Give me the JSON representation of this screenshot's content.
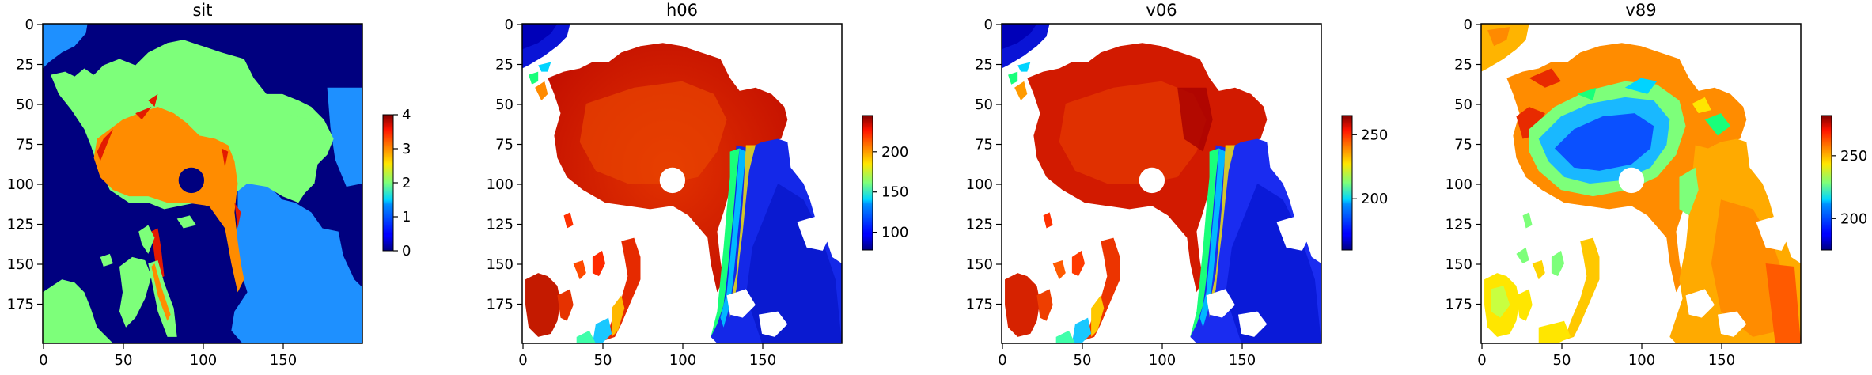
{
  "chart_data": [
    {
      "type": "heatmap",
      "title": "sit",
      "xticks": [
        "0",
        "50",
        "100",
        "150"
      ],
      "yticks": [
        "0",
        "25",
        "50",
        "75",
        "100",
        "125",
        "150",
        "175"
      ],
      "colorbar": {
        "ticks": [
          "0",
          "1",
          "2",
          "3",
          "4"
        ],
        "min": 0,
        "max": 4
      },
      "colormap": "jet"
    },
    {
      "type": "heatmap",
      "title": "h06",
      "xticks": [
        "0",
        "50",
        "100",
        "150"
      ],
      "yticks": [
        "0",
        "25",
        "50",
        "75",
        "100",
        "125",
        "150",
        "175"
      ],
      "colorbar": {
        "ticks": [
          "100",
          "150",
          "200"
        ],
        "min": 78,
        "max": 245
      },
      "colormap": "jet"
    },
    {
      "type": "heatmap",
      "title": "v06",
      "xticks": [
        "0",
        "50",
        "100",
        "150"
      ],
      "yticks": [
        "0",
        "25",
        "50",
        "75",
        "100",
        "125",
        "150",
        "175"
      ],
      "colorbar": {
        "ticks": [
          "200",
          "250"
        ],
        "min": 160,
        "max": 265
      },
      "colormap": "jet"
    },
    {
      "type": "heatmap",
      "title": "v89",
      "xticks": [
        "0",
        "50",
        "100",
        "150"
      ],
      "yticks": [
        "0",
        "25",
        "50",
        "75",
        "100",
        "125",
        "150",
        "175"
      ],
      "colorbar": {
        "ticks": [
          "200",
          "250"
        ],
        "min": 175,
        "max": 282
      },
      "colormap": "jet"
    }
  ]
}
